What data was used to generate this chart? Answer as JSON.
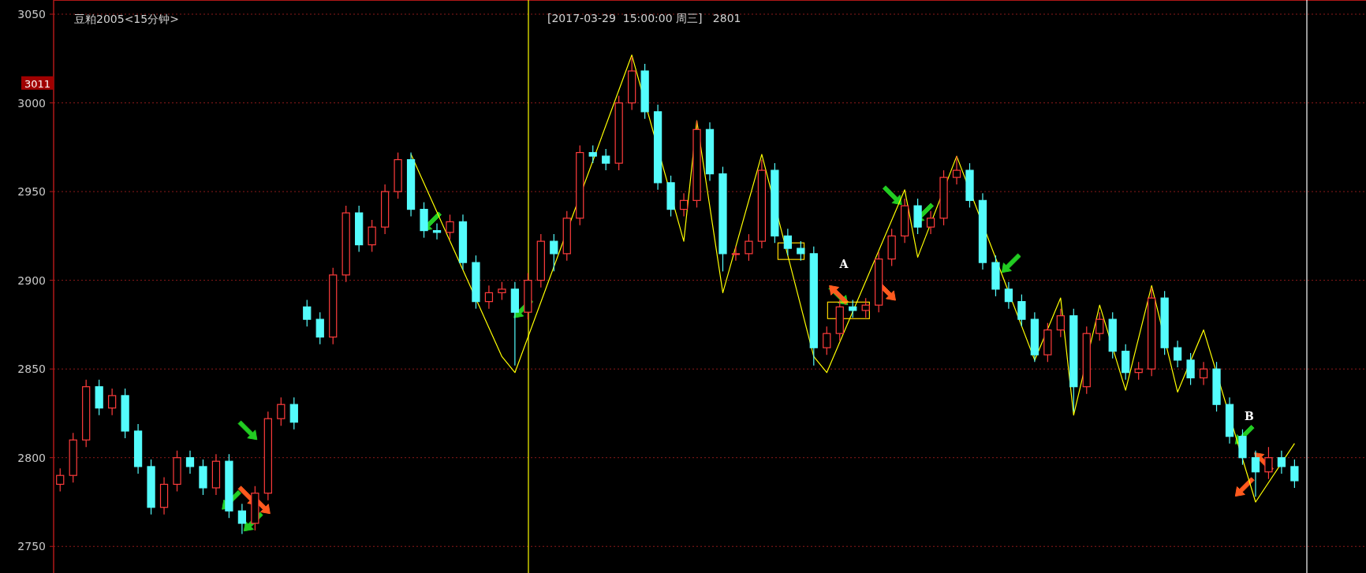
{
  "chart_data": {
    "type": "candlestick",
    "title": "豆粕2005<15分钟>",
    "subtitle": "[2017-03-29  15:00:00 周三]   2801",
    "categories": [
      null,
      null,
      null,
      null,
      null,
      null,
      null,
      null,
      null,
      null,
      null,
      null,
      null,
      null,
      null,
      null,
      null,
      null,
      null,
      null,
      null,
      null,
      null,
      null,
      null,
      null,
      null,
      null,
      null,
      null,
      null,
      null,
      null,
      null,
      null,
      null,
      null,
      null,
      null,
      null,
      null,
      null,
      null,
      null,
      null,
      null,
      null,
      null,
      null,
      null,
      null,
      null,
      null,
      null,
      null,
      null,
      null,
      null,
      null,
      null,
      null,
      null,
      null,
      null,
      null,
      null,
      null,
      null,
      null,
      null,
      null,
      null,
      null,
      null,
      null,
      null,
      null,
      null,
      null,
      null,
      null,
      null,
      null,
      null,
      null,
      null,
      null,
      null,
      null,
      null,
      null,
      null,
      null,
      null,
      null,
      null
    ],
    "ylim": [
      2735,
      3058
    ],
    "yticks": [
      2750,
      2800,
      2850,
      2900,
      2950,
      3000,
      3050
    ],
    "tick_labels": "y",
    "grid": "y",
    "ohlc": [
      [
        2785,
        2794,
        2781,
        2790
      ],
      [
        2790,
        2814,
        2786,
        2810
      ],
      [
        2810,
        2844,
        2806,
        2840
      ],
      [
        2840,
        2844,
        2824,
        2828
      ],
      [
        2828,
        2839,
        2824,
        2835
      ],
      [
        2835,
        2839,
        2811,
        2815
      ],
      [
        2815,
        2819,
        2791,
        2795
      ],
      [
        2795,
        2799,
        2768,
        2772
      ],
      [
        2772,
        2789,
        2768,
        2785
      ],
      [
        2785,
        2804,
        2781,
        2800
      ],
      [
        2800,
        2804,
        2791,
        2795
      ],
      [
        2795,
        2799,
        2779,
        2783
      ],
      [
        2783,
        2802,
        2779,
        2798
      ],
      [
        2798,
        2802,
        2766,
        2770
      ],
      [
        2770,
        2774,
        2757,
        2763
      ],
      [
        2763,
        2784,
        2759,
        2780
      ],
      [
        2780,
        2826,
        2776,
        2822
      ],
      [
        2822,
        2834,
        2818,
        2830
      ],
      [
        2830,
        2834,
        2816,
        2820
      ],
      [
        2885,
        2889,
        2874,
        2878
      ],
      [
        2878,
        2882,
        2864,
        2868
      ],
      [
        2868,
        2907,
        2864,
        2903
      ],
      [
        2903,
        2942,
        2899,
        2938
      ],
      [
        2938,
        2942,
        2916,
        2920
      ],
      [
        2920,
        2934,
        2916,
        2930
      ],
      [
        2930,
        2954,
        2926,
        2950
      ],
      [
        2950,
        2972,
        2946,
        2968
      ],
      [
        2968,
        2972,
        2936,
        2940
      ],
      [
        2940,
        2944,
        2924,
        2928
      ],
      [
        2928,
        2932,
        2923,
        2927
      ],
      [
        2927,
        2937,
        2923,
        2933
      ],
      [
        2933,
        2937,
        2906,
        2910
      ],
      [
        2910,
        2914,
        2884,
        2888
      ],
      [
        2888,
        2897,
        2884,
        2893
      ],
      [
        2893,
        2899,
        2889,
        2895
      ],
      [
        2895,
        2899,
        2852,
        2882
      ],
      [
        2882,
        2904,
        2878,
        2900
      ],
      [
        2900,
        2926,
        2896,
        2922
      ],
      [
        2922,
        2926,
        2905,
        2915
      ],
      [
        2915,
        2939,
        2911,
        2935
      ],
      [
        2935,
        2976,
        2931,
        2972
      ],
      [
        2972,
        2976,
        2966,
        2970
      ],
      [
        2970,
        2974,
        2962,
        2966
      ],
      [
        2966,
        3004,
        2962,
        3000
      ],
      [
        3000,
        3026,
        2996,
        3018
      ],
      [
        3018,
        3022,
        2991,
        2995
      ],
      [
        2995,
        2999,
        2951,
        2955
      ],
      [
        2955,
        2959,
        2936,
        2940
      ],
      [
        2940,
        2949,
        2936,
        2945
      ],
      [
        2945,
        2990,
        2941,
        2985
      ],
      [
        2985,
        2989,
        2956,
        2960
      ],
      [
        2960,
        2964,
        2905,
        2915
      ],
      [
        2915,
        2919,
        2911,
        2915
      ],
      [
        2915,
        2926,
        2911,
        2922
      ],
      [
        2922,
        2968,
        2918,
        2962
      ],
      [
        2962,
        2966,
        2921,
        2925
      ],
      [
        2925,
        2929,
        2914,
        2918
      ],
      [
        2918,
        2922,
        2911,
        2915
      ],
      [
        2915,
        2919,
        2852,
        2862
      ],
      [
        2862,
        2874,
        2858,
        2870
      ],
      [
        2870,
        2889,
        2866,
        2885
      ],
      [
        2885,
        2889,
        2879,
        2883
      ],
      [
        2883,
        2890,
        2879,
        2886
      ],
      [
        2886,
        2916,
        2882,
        2912
      ],
      [
        2912,
        2929,
        2908,
        2925
      ],
      [
        2925,
        2946,
        2921,
        2942
      ],
      [
        2942,
        2946,
        2926,
        2930
      ],
      [
        2930,
        2939,
        2926,
        2935
      ],
      [
        2935,
        2962,
        2931,
        2958
      ],
      [
        2958,
        2970,
        2954,
        2962
      ],
      [
        2962,
        2966,
        2941,
        2945
      ],
      [
        2945,
        2949,
        2906,
        2910
      ],
      [
        2910,
        2914,
        2891,
        2895
      ],
      [
        2895,
        2899,
        2884,
        2888
      ],
      [
        2888,
        2892,
        2874,
        2878
      ],
      [
        2878,
        2882,
        2854,
        2858
      ],
      [
        2858,
        2876,
        2854,
        2872
      ],
      [
        2872,
        2884,
        2868,
        2880
      ],
      [
        2880,
        2884,
        2826,
        2840
      ],
      [
        2840,
        2874,
        2836,
        2870
      ],
      [
        2870,
        2882,
        2866,
        2878
      ],
      [
        2878,
        2882,
        2856,
        2860
      ],
      [
        2860,
        2864,
        2844,
        2848
      ],
      [
        2848,
        2854,
        2844,
        2850
      ],
      [
        2850,
        2896,
        2846,
        2890
      ],
      [
        2890,
        2894,
        2858,
        2862
      ],
      [
        2862,
        2866,
        2851,
        2855
      ],
      [
        2855,
        2859,
        2841,
        2845
      ],
      [
        2845,
        2854,
        2841,
        2850
      ],
      [
        2850,
        2854,
        2826,
        2830
      ],
      [
        2830,
        2834,
        2808,
        2812
      ],
      [
        2812,
        2816,
        2796,
        2800
      ],
      [
        2800,
        2804,
        2778,
        2792
      ],
      [
        2792,
        2806,
        2788,
        2800
      ],
      [
        2800,
        2804,
        2791,
        2795
      ],
      [
        2795,
        2799,
        2783,
        2787
      ]
    ],
    "colors": [
      "#ff3c3c",
      "#ff3c3c",
      "#ff3c3c",
      "#54fcfc",
      "#ff3c3c",
      "#54fcfc",
      "#54fcfc",
      "#54fcfc",
      "#ff3c3c",
      "#ff3c3c",
      "#54fcfc",
      "#54fcfc",
      "#ff3c3c",
      "#54fcfc",
      "#54fcfc",
      "#ff3c3c",
      "#ff3c3c",
      "#ff3c3c",
      "#54fcfc",
      "#54fcfc",
      "#54fcfc",
      "#ff3c3c",
      "#ff3c3c",
      "#54fcfc",
      "#ff3c3c",
      "#ff3c3c",
      "#ff3c3c",
      "#54fcfc",
      "#54fcfc",
      "#54fcfc",
      "#ff3c3c",
      "#54fcfc",
      "#54fcfc",
      "#ff3c3c",
      "#ff3c3c",
      "#54fcfc",
      "#ff3c3c",
      "#ff3c3c",
      "#54fcfc",
      "#ff3c3c",
      "#ff3c3c",
      "#54fcfc",
      "#54fcfc",
      "#ff3c3c",
      "#ff3c3c",
      "#54fcfc",
      "#54fcfc",
      "#54fcfc",
      "#ff3c3c",
      "#ff3c3c",
      "#54fcfc",
      "#54fcfc",
      "#ff3c3c",
      "#ff3c3c",
      "#ff3c3c",
      "#54fcfc",
      "#54fcfc",
      "#54fcfc",
      "#54fcfc",
      "#ff3c3c",
      "#ff3c3c",
      "#54fcfc",
      "#ff3c3c",
      "#ff3c3c",
      "#ff3c3c",
      "#ff3c3c",
      "#54fcfc",
      "#ff3c3c",
      "#ff3c3c",
      "#ff3c3c",
      "#54fcfc",
      "#54fcfc",
      "#54fcfc",
      "#54fcfc",
      "#54fcfc",
      "#54fcfc",
      "#ff3c3c",
      "#ff3c3c",
      "#54fcfc",
      "#ff3c3c",
      "#ff3c3c",
      "#54fcfc",
      "#54fcfc",
      "#ff3c3c",
      "#ff3c3c",
      "#54fcfc",
      "#54fcfc",
      "#54fcfc",
      "#ff3c3c",
      "#54fcfc",
      "#54fcfc",
      "#54fcfc",
      "#54fcfc",
      "#ff3c3c",
      "#54fcfc",
      "#54fcfc"
    ],
    "series": [
      {
        "type": "line",
        "color": "#ffff00",
        "values": [
          null,
          null,
          null,
          null,
          null,
          null,
          null,
          null,
          null,
          null,
          null,
          null,
          null,
          null,
          null,
          null,
          null,
          null,
          null,
          null,
          null,
          null,
          null,
          null,
          null,
          null,
          null,
          2971,
          null,
          null,
          null,
          null,
          null,
          null,
          2857,
          2848,
          null,
          null,
          null,
          null,
          null,
          null,
          null,
          null,
          3027,
          null,
          null,
          null,
          2922,
          2990,
          null,
          2893,
          null,
          null,
          2971,
          null,
          null,
          null,
          2857,
          2848,
          null,
          null,
          null,
          null,
          null,
          2951,
          2913,
          null,
          null,
          2970,
          null,
          null,
          null,
          null,
          null,
          2855,
          null,
          2890,
          2824,
          null,
          2886,
          null,
          2838,
          null,
          2897,
          null,
          2837,
          null,
          2872,
          null,
          null,
          null,
          2775,
          null,
          null,
          2808
        ]
      }
    ],
    "annotations": [
      {
        "text": "3011",
        "y": 3011
      },
      "A",
      "B"
    ]
  }
}
